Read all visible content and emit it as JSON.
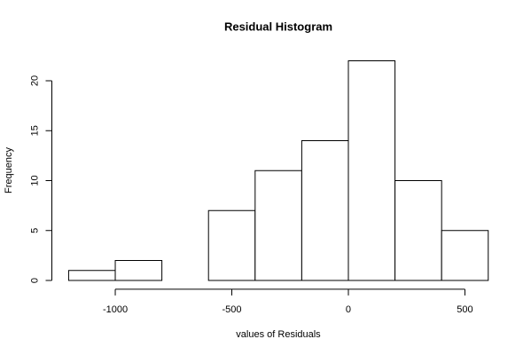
{
  "chart_data": {
    "type": "histogram",
    "title": "Residual Histogram",
    "x_label": "values of Residuals",
    "y_label": "Frequency",
    "bins": [
      -1200,
      -1000,
      -800,
      -600,
      -400,
      -200,
      0,
      200,
      400,
      600
    ],
    "values": [
      1,
      2,
      0,
      7,
      11,
      14,
      22,
      10,
      5
    ],
    "color": "#ffffff",
    "edge_color": "#000000",
    "xlim": [
      -1272,
      672
    ],
    "ylim": [
      -0.88,
      22.88
    ],
    "xticks": [
      -1000,
      -500,
      0,
      500
    ],
    "yticks": [
      0,
      5,
      10,
      15,
      20
    ],
    "grid": false
  }
}
